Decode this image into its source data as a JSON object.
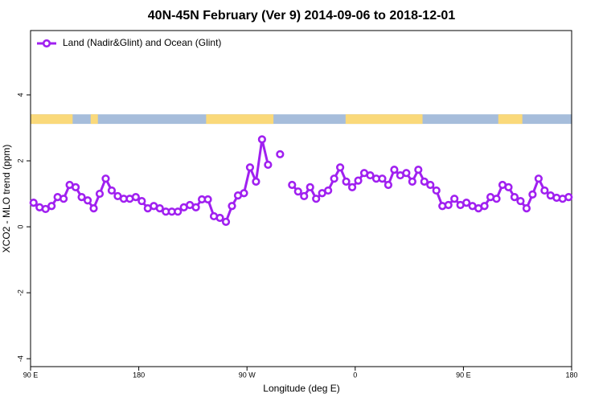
{
  "chart_data": {
    "type": "line",
    "title": "40N-45N February (Ver 9)   2014-09-06 to 2018-12-01",
    "xlabel": "Longitude (deg E)",
    "ylabel": "XCO2 - MLO trend (ppm)",
    "x": [
      92.5,
      97.5,
      102.5,
      107.5,
      112.5,
      117.5,
      122.5,
      127.5,
      132.5,
      137.5,
      142.5,
      147.5,
      152.5,
      157.5,
      162.5,
      167.5,
      172.5,
      177.5,
      182.5,
      187.5,
      192.5,
      197.5,
      202.5,
      207.5,
      212.5,
      217.5,
      222.5,
      227.5,
      232.5,
      237.5,
      242.5,
      247.5,
      252.5,
      257.5,
      262.5,
      267.5,
      272.5,
      277.5,
      282.5,
      287.5,
      292.5,
      297.5,
      302.5,
      307.5,
      312.5,
      317.5,
      322.5,
      327.5,
      332.5,
      337.5,
      342.5,
      347.5,
      352.5,
      357.5,
      362.5,
      367.5,
      372.5,
      377.5,
      382.5,
      387.5,
      392.5,
      397.5,
      402.5,
      407.5,
      412.5,
      417.5,
      422.5,
      427.5,
      432.5,
      437.5,
      442.5,
      447.5,
      452.5,
      457.5,
      462.5,
      467.5,
      472.5,
      477.5,
      482.5,
      487.5,
      492.5,
      497.5,
      502.5,
      507.5,
      512.5,
      517.5,
      522.5,
      527.5,
      532.5,
      537.5
    ],
    "series": [
      {
        "name": "Land (Nadir&Glint) and Ocean (Glint)",
        "color": "#a020f0",
        "values": [
          0.73,
          0.59,
          0.54,
          0.63,
          0.9,
          0.85,
          1.27,
          1.2,
          0.9,
          0.8,
          0.56,
          1.0,
          1.46,
          1.1,
          0.93,
          0.85,
          0.85,
          0.9,
          0.78,
          0.56,
          0.63,
          0.56,
          0.46,
          0.46,
          0.46,
          0.59,
          0.66,
          0.59,
          0.83,
          0.83,
          0.32,
          0.27,
          0.15,
          0.63,
          0.95,
          1.02,
          1.8,
          1.37,
          2.65,
          1.88,
          null,
          2.2,
          null,
          1.27,
          1.07,
          0.93,
          1.2,
          0.85,
          1.02,
          1.1,
          1.46,
          1.8,
          1.37,
          1.2,
          1.4,
          1.63,
          1.56,
          1.46,
          1.46,
          1.27,
          1.73,
          1.56,
          1.63,
          1.37,
          1.73,
          1.37,
          1.27,
          1.1,
          0.63,
          0.66,
          0.85,
          0.66,
          0.73,
          0.63,
          0.56,
          0.63,
          0.9,
          0.85,
          1.27,
          1.2,
          0.9,
          0.78,
          0.56,
          0.98,
          1.46,
          1.1,
          0.95,
          0.88,
          0.85,
          0.9
        ]
      }
    ],
    "xlim": [
      90,
      540
    ],
    "xticks": [
      {
        "value": 90,
        "label": "90 E"
      },
      180,
      {
        "value": 270,
        "label": "90 W"
      },
      {
        "value": 360,
        "label": "0"
      },
      {
        "value": 450,
        "label": "90 E"
      },
      {
        "value": 540,
        "label": "180"
      }
    ],
    "ylim": [
      -4.24,
      5.95
    ],
    "yticks": [
      -4,
      -2,
      0,
      2,
      4
    ],
    "legend": "top-left",
    "mask": {
      "range": [
        3.12,
        3.41
      ],
      "ocean_color": "#a6bddb",
      "land_color": "#fad97a",
      "land": [
        [
          90,
          125
        ],
        [
          140,
          146
        ],
        [
          236,
          292
        ],
        [
          352,
          416
        ],
        [
          479,
          499
        ]
      ]
    }
  }
}
